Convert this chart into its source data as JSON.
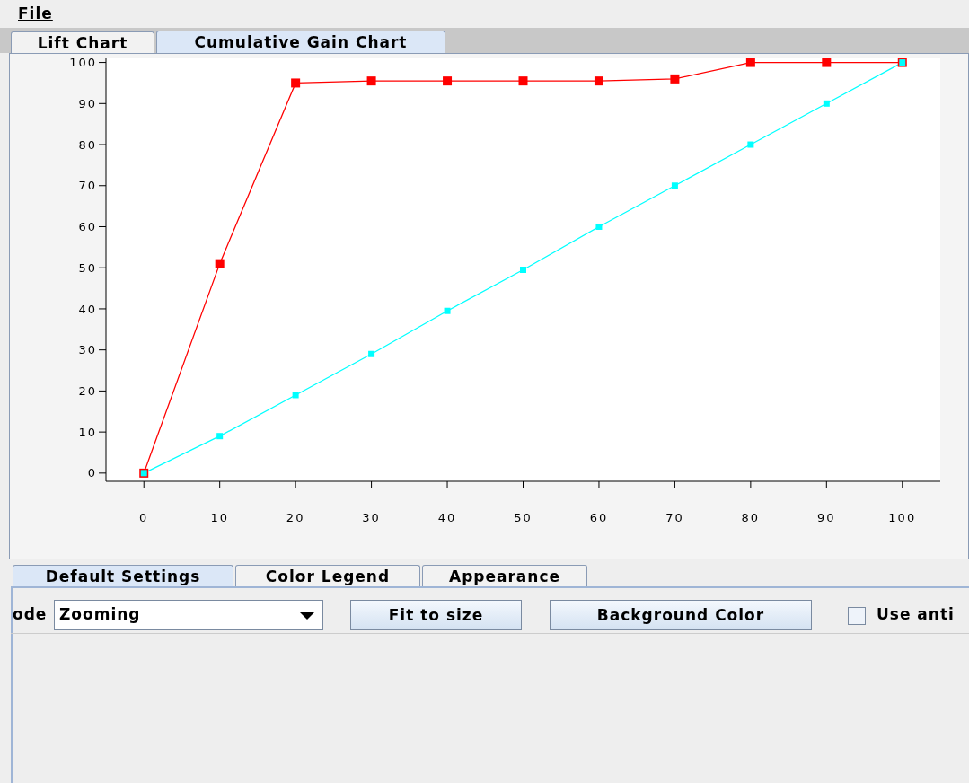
{
  "chart_data": {
    "type": "line",
    "title": "Cumulative Gain Chart",
    "x": [
      0,
      10,
      20,
      30,
      40,
      50,
      60,
      70,
      80,
      90,
      100
    ],
    "series": [
      {
        "color": "#ff0000",
        "values": [
          0,
          51,
          95,
          95.5,
          95.5,
          95.5,
          95.5,
          96,
          100,
          100,
          100
        ]
      },
      {
        "color": "#00ffff",
        "values": [
          0,
          9,
          19,
          29,
          39.5,
          49.5,
          60,
          70,
          80,
          90,
          100
        ]
      }
    ],
    "xlim": [
      -5,
      105
    ],
    "xticks": [
      0,
      10,
      20,
      30,
      40,
      50,
      60,
      70,
      80,
      90,
      100
    ],
    "ylim": [
      -2,
      101
    ],
    "yticks": [
      0,
      10,
      20,
      30,
      40,
      50,
      60,
      70,
      80,
      90,
      100
    ],
    "grid": false,
    "legend": false,
    "marker": "square",
    "line_style": "solid",
    "annotations": [
      "File",
      "Lift Chart",
      "Default Settings",
      "Color Legend",
      "Appearance",
      "ode",
      "Zooming",
      "Fit to size",
      "Background Color",
      "Use anti"
    ]
  }
}
